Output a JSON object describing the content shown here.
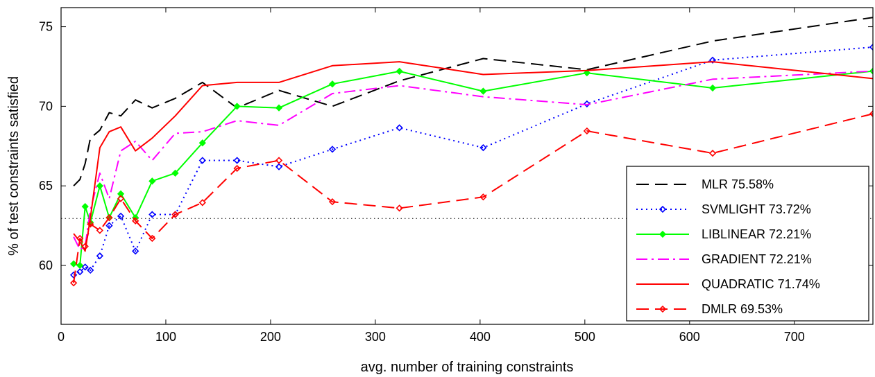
{
  "chart_data": {
    "type": "line",
    "title": "",
    "xlabel": "avg. number of training constraints",
    "ylabel": "% of test constraints satisfied",
    "xlim": [
      0,
      775
    ],
    "ylim": [
      56.3,
      76.2
    ],
    "xticks": [
      0,
      100,
      200,
      300,
      400,
      500,
      600,
      700
    ],
    "yticks": [
      60,
      65,
      70,
      75
    ],
    "grid": false,
    "legend_position": "bottom-right",
    "reference_line": {
      "y": 62.95,
      "style": "dotted",
      "color": "#000000"
    },
    "series": [
      {
        "name": "MLR",
        "legend_label": "MLR 75.58%",
        "color": "#000000",
        "linestyle": "dashed",
        "marker": "none",
        "points": [
          [
            12,
            65.0
          ],
          [
            18,
            65.4
          ],
          [
            23,
            66.4
          ],
          [
            28,
            68.0
          ],
          [
            37,
            68.5
          ],
          [
            46,
            69.6
          ],
          [
            57,
            69.4
          ],
          [
            71,
            70.4
          ],
          [
            87,
            69.9
          ],
          [
            109,
            70.5
          ],
          [
            135,
            71.5
          ],
          [
            168,
            69.9
          ],
          [
            208,
            71.0
          ],
          [
            259,
            70.0
          ],
          [
            323,
            71.6
          ],
          [
            403,
            73.0
          ],
          [
            502,
            72.3
          ],
          [
            622,
            74.1
          ],
          [
            775,
            75.58
          ]
        ]
      },
      {
        "name": "SVMLIGHT",
        "legend_label": "SVMLIGHT 73.72%",
        "color": "#0000ff",
        "linestyle": "dotted",
        "marker": "diamond",
        "points": [
          [
            12,
            59.4
          ],
          [
            18,
            59.6
          ],
          [
            23,
            59.9
          ],
          [
            28,
            59.7
          ],
          [
            37,
            60.6
          ],
          [
            46,
            62.5
          ],
          [
            57,
            63.1
          ],
          [
            71,
            60.9
          ],
          [
            87,
            63.2
          ],
          [
            109,
            63.2
          ],
          [
            135,
            66.6
          ],
          [
            168,
            66.6
          ],
          [
            208,
            66.2
          ],
          [
            259,
            67.3
          ],
          [
            323,
            68.65
          ],
          [
            403,
            67.4
          ],
          [
            502,
            70.15
          ],
          [
            622,
            72.9
          ],
          [
            775,
            73.72
          ]
        ]
      },
      {
        "name": "LIBLINEAR",
        "legend_label": "LIBLINEAR 72.21%",
        "color": "#00ff00",
        "linestyle": "solid",
        "marker": "diamond",
        "points": [
          [
            12,
            60.1
          ],
          [
            18,
            60.0
          ],
          [
            23,
            63.7
          ],
          [
            28,
            62.7
          ],
          [
            37,
            65.0
          ],
          [
            46,
            63.0
          ],
          [
            57,
            64.5
          ],
          [
            71,
            63.0
          ],
          [
            87,
            65.3
          ],
          [
            109,
            65.8
          ],
          [
            135,
            67.7
          ],
          [
            168,
            70.0
          ],
          [
            208,
            69.9
          ],
          [
            259,
            71.4
          ],
          [
            323,
            72.2
          ],
          [
            403,
            70.95
          ],
          [
            502,
            72.1
          ],
          [
            622,
            71.15
          ],
          [
            775,
            72.21
          ]
        ]
      },
      {
        "name": "GRADIENT",
        "legend_label": "GRADIENT 72.21%",
        "color": "#ff00ff",
        "linestyle": "dashdot",
        "marker": "none",
        "points": [
          [
            12,
            61.8
          ],
          [
            18,
            61.0
          ],
          [
            23,
            61.2
          ],
          [
            28,
            63.5
          ],
          [
            37,
            65.8
          ],
          [
            46,
            64.2
          ],
          [
            57,
            67.2
          ],
          [
            71,
            67.8
          ],
          [
            87,
            66.6
          ],
          [
            109,
            68.3
          ],
          [
            135,
            68.4
          ],
          [
            168,
            69.1
          ],
          [
            208,
            68.8
          ],
          [
            259,
            70.8
          ],
          [
            323,
            71.3
          ],
          [
            403,
            70.6
          ],
          [
            502,
            70.1
          ],
          [
            622,
            71.7
          ],
          [
            775,
            72.21
          ]
        ]
      },
      {
        "name": "QUADRATIC",
        "legend_label": "QUADRATIC 71.74%",
        "color": "#ff0000",
        "linestyle": "solid",
        "marker": "none",
        "points": [
          [
            12,
            62.0
          ],
          [
            18,
            61.5
          ],
          [
            23,
            60.9
          ],
          [
            28,
            63.0
          ],
          [
            37,
            67.4
          ],
          [
            46,
            68.4
          ],
          [
            57,
            68.7
          ],
          [
            71,
            67.2
          ],
          [
            87,
            68.0
          ],
          [
            109,
            69.4
          ],
          [
            135,
            71.3
          ],
          [
            168,
            71.5
          ],
          [
            208,
            71.5
          ],
          [
            259,
            72.55
          ],
          [
            323,
            72.8
          ],
          [
            403,
            72.0
          ],
          [
            502,
            72.25
          ],
          [
            622,
            72.8
          ],
          [
            775,
            71.74
          ]
        ]
      },
      {
        "name": "DMLR",
        "legend_label": "DMLR 69.53%",
        "color": "#ff0000",
        "linestyle": "dashed",
        "marker": "diamond",
        "points": [
          [
            12,
            58.9
          ],
          [
            18,
            61.7
          ],
          [
            23,
            61.2
          ],
          [
            28,
            62.6
          ],
          [
            37,
            62.2
          ],
          [
            46,
            63.0
          ],
          [
            57,
            64.2
          ],
          [
            71,
            62.8
          ],
          [
            87,
            61.7
          ],
          [
            109,
            63.2
          ],
          [
            135,
            63.95
          ],
          [
            168,
            66.1
          ],
          [
            208,
            66.6
          ],
          [
            259,
            64.0
          ],
          [
            323,
            63.6
          ],
          [
            403,
            64.3
          ],
          [
            502,
            68.45
          ],
          [
            622,
            67.05
          ],
          [
            775,
            69.53
          ]
        ]
      }
    ]
  }
}
